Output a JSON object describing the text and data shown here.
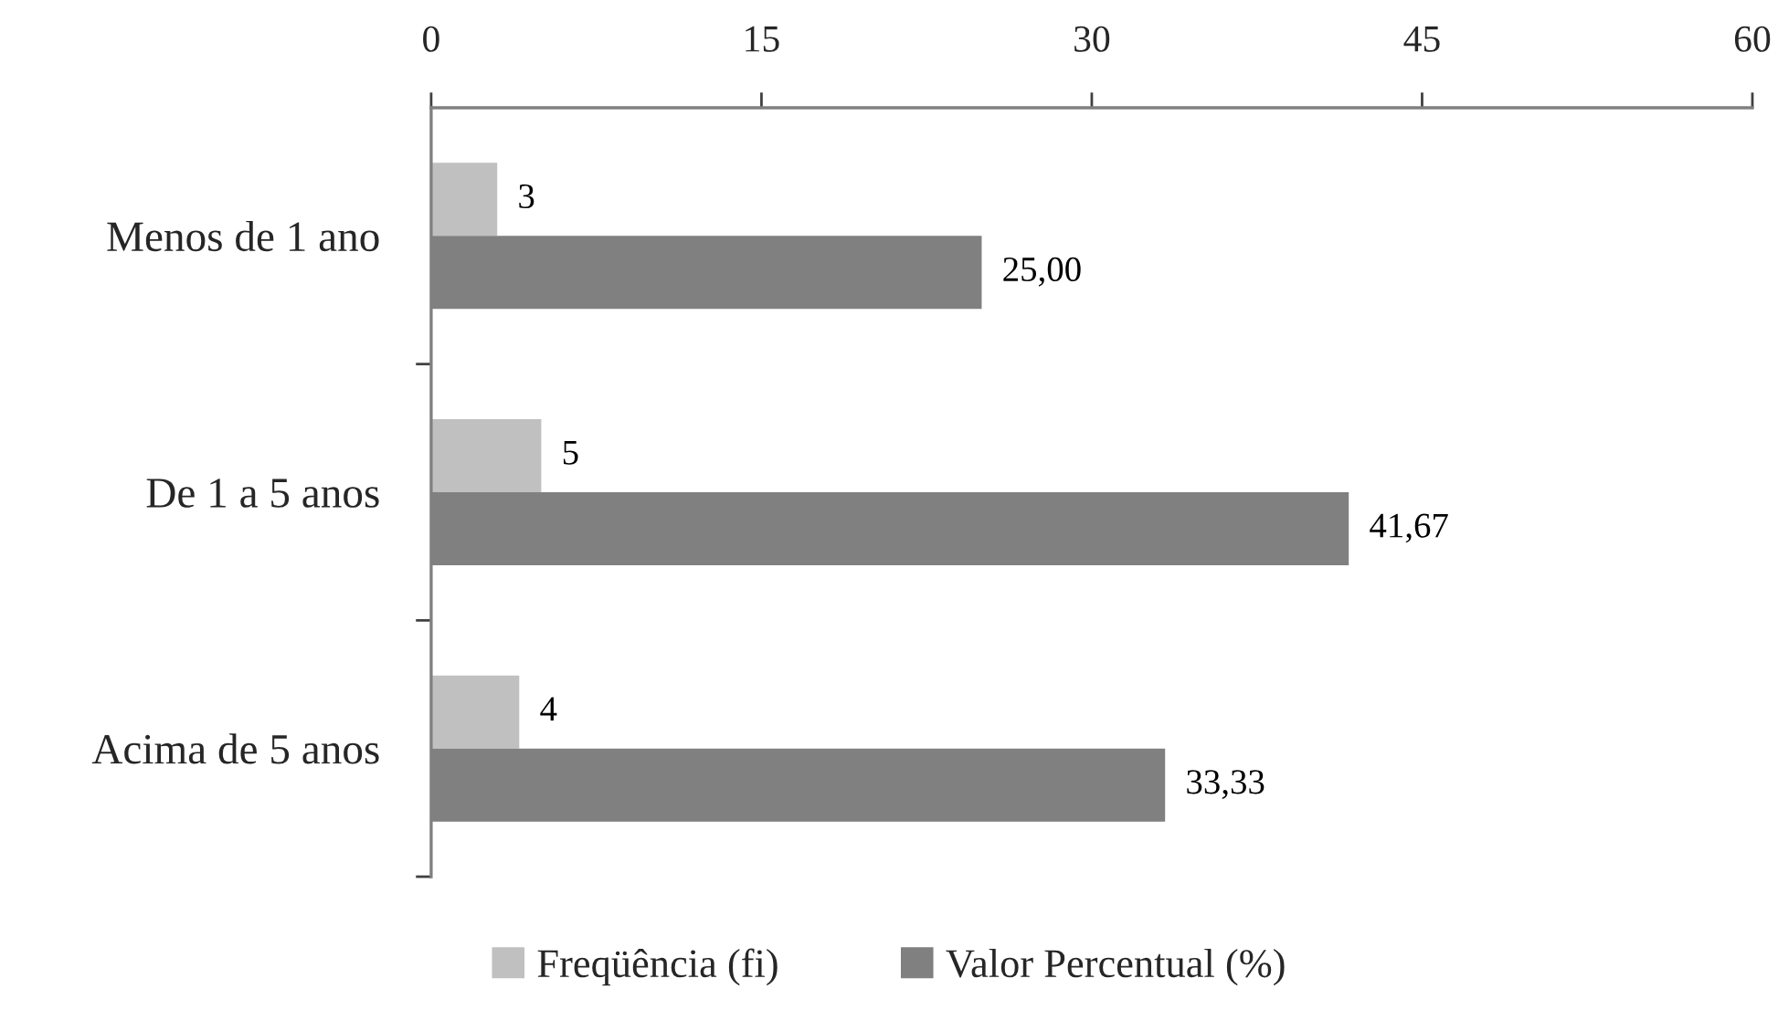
{
  "chart_data": {
    "type": "bar",
    "orientation": "horizontal",
    "categories": [
      "Menos de 1 ano",
      "De 1 a 5 anos",
      "Acima de 5 anos"
    ],
    "series": [
      {
        "name": "Freqüência (fi)",
        "color": "#c0c0c0",
        "values": [
          3,
          5,
          4
        ],
        "value_labels": [
          "3",
          "5",
          "4"
        ]
      },
      {
        "name": "Valor Percentual (%)",
        "color": "#808080",
        "values": [
          25.0,
          41.67,
          33.33
        ],
        "value_labels": [
          "25,00",
          "41,67",
          "33,33"
        ]
      }
    ],
    "xlim": [
      0,
      60
    ],
    "xticks": [
      0,
      15,
      30,
      45,
      60
    ],
    "grid": false,
    "legend": "bottom"
  }
}
